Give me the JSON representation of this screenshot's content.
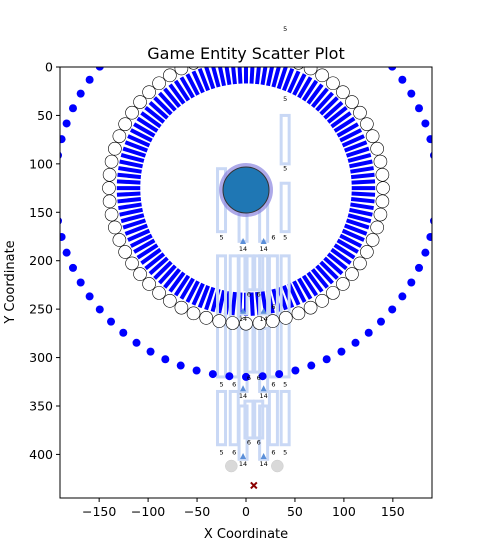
{
  "chart_data": {
    "type": "scatter",
    "title": "Game Entity Scatter Plot",
    "xlabel": "X Coordinate",
    "ylabel": "Y Coordinate",
    "xlim": [
      -190,
      190
    ],
    "ylim": [
      445,
      0
    ],
    "y_inverted": true,
    "grid": false,
    "xticks": [
      -150,
      -100,
      -50,
      0,
      50,
      100,
      150
    ],
    "yticks": [
      0,
      50,
      100,
      150,
      200,
      250,
      300,
      350,
      400
    ],
    "colors": {
      "outer_ring": "#0000ff",
      "spokes": "#0000ff",
      "inner_ring_fill": "#ffffff",
      "inner_ring_edge": "#000000",
      "central_entity": "#1f77b4",
      "central_entity_edge": "#8a84e0",
      "structures": "#c9d8f5",
      "small_markers": "#5b8fd9",
      "gray_entities": "#d9d9d9",
      "x_marker": "#8b0000"
    },
    "central_entity": {
      "x": 0,
      "y": 127,
      "label": ""
    },
    "outer_ring": {
      "cx": 0,
      "cy": 125,
      "r": 195,
      "count": 72
    },
    "inner_ring": {
      "cx": 0,
      "cy": 125,
      "r": 140,
      "count": 64
    },
    "spokes": {
      "cx": 0,
      "cy": 125,
      "r_inner": 108,
      "r_outer": 132,
      "count": 120
    },
    "gray_entities": [
      {
        "x": -15,
        "y": 412
      },
      {
        "x": 32,
        "y": 412
      }
    ],
    "x_marker": {
      "x": 8,
      "y": 432
    },
    "column_labels": [
      {
        "x": 40,
        "y": -37,
        "text": "5"
      },
      {
        "x": 40,
        "y": 35,
        "text": "5"
      },
      {
        "x": 40,
        "y": 107,
        "text": "5"
      },
      {
        "x": -25,
        "y": 178,
        "text": "5"
      },
      {
        "x": 40,
        "y": 178,
        "text": "5"
      },
      {
        "x": 28,
        "y": 178,
        "text": "6"
      },
      {
        "x": -3,
        "y": 190,
        "text": "14"
      },
      {
        "x": 18,
        "y": 190,
        "text": "14"
      },
      {
        "x": -25,
        "y": 330,
        "text": "5"
      },
      {
        "x": -12,
        "y": 330,
        "text": "6"
      },
      {
        "x": 28,
        "y": 330,
        "text": "6"
      },
      {
        "x": 40,
        "y": 330,
        "text": "5"
      },
      {
        "x": 3,
        "y": 323,
        "text": "6"
      },
      {
        "x": 13,
        "y": 323,
        "text": "6"
      },
      {
        "x": -3,
        "y": 342,
        "text": "14"
      },
      {
        "x": 18,
        "y": 342,
        "text": "14"
      },
      {
        "x": 3,
        "y": 390,
        "text": "6"
      },
      {
        "x": 13,
        "y": 390,
        "text": "6"
      },
      {
        "x": -25,
        "y": 400,
        "text": "5"
      },
      {
        "x": -12,
        "y": 400,
        "text": "6"
      },
      {
        "x": 28,
        "y": 400,
        "text": "6"
      },
      {
        "x": 40,
        "y": 400,
        "text": "5"
      },
      {
        "x": -3,
        "y": 412,
        "text": "14"
      },
      {
        "x": 18,
        "y": 412,
        "text": "14"
      },
      {
        "x": 3,
        "y": 237,
        "text": "6"
      },
      {
        "x": 13,
        "y": 237,
        "text": "6"
      },
      {
        "x": 28,
        "y": 250,
        "text": "6"
      },
      {
        "x": -3,
        "y": 262,
        "text": "14"
      },
      {
        "x": 18,
        "y": 262,
        "text": "14"
      }
    ],
    "structures": [
      {
        "x": 40,
        "y1": 50,
        "y2": 100
      },
      {
        "x": -25,
        "y1": 105,
        "y2": 170
      },
      {
        "x": 40,
        "y1": 120,
        "y2": 170
      },
      {
        "x": -3,
        "y1": 120,
        "y2": 180
      },
      {
        "x": 18,
        "y1": 120,
        "y2": 180
      },
      {
        "x": -25,
        "y1": 195,
        "y2": 320
      },
      {
        "x": -12,
        "y1": 195,
        "y2": 320
      },
      {
        "x": -3,
        "y1": 195,
        "y2": 255
      },
      {
        "x": 3,
        "y1": 195,
        "y2": 230
      },
      {
        "x": 13,
        "y1": 195,
        "y2": 230
      },
      {
        "x": 18,
        "y1": 195,
        "y2": 255
      },
      {
        "x": 28,
        "y1": 195,
        "y2": 320
      },
      {
        "x": 40,
        "y1": 195,
        "y2": 320
      },
      {
        "x": -3,
        "y1": 270,
        "y2": 335
      },
      {
        "x": 18,
        "y1": 270,
        "y2": 335
      },
      {
        "x": 3,
        "y1": 265,
        "y2": 315
      },
      {
        "x": 13,
        "y1": 265,
        "y2": 315
      },
      {
        "x": -25,
        "y1": 335,
        "y2": 390
      },
      {
        "x": -12,
        "y1": 335,
        "y2": 390
      },
      {
        "x": 28,
        "y1": 335,
        "y2": 390
      },
      {
        "x": 40,
        "y1": 335,
        "y2": 390
      },
      {
        "x": 3,
        "y1": 345,
        "y2": 383
      },
      {
        "x": 13,
        "y1": 345,
        "y2": 383
      },
      {
        "x": -3,
        "y1": 350,
        "y2": 405
      },
      {
        "x": 18,
        "y1": 350,
        "y2": 405
      }
    ]
  }
}
